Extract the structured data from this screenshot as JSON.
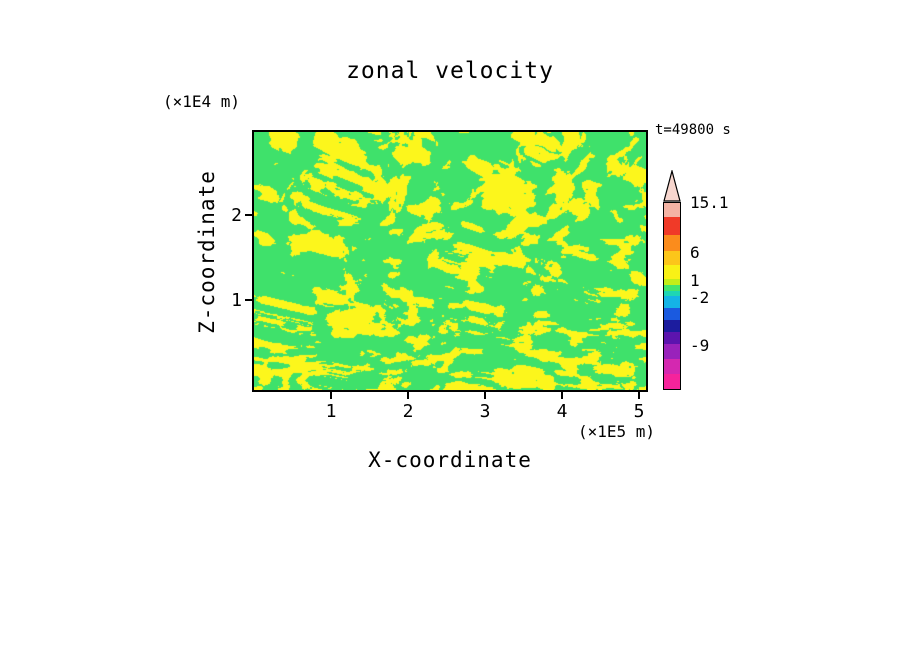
{
  "chart_data": {
    "type": "heatmap",
    "title": "zonal velocity",
    "annotation": "t=49800 s",
    "xlabel": "X-coordinate",
    "ylabel": "Z-coordinate",
    "x_units": "(×1E5 m)",
    "y_units": "(×1E4 m)",
    "x_ticks": [
      1,
      2,
      3,
      4,
      5
    ],
    "y_ticks": [
      1,
      2
    ],
    "xlim": [
      0,
      5.15
    ],
    "ylim": [
      0,
      3.03
    ],
    "legend_position": "right",
    "grid": false,
    "field": {
      "description": "turbulent two-tone filled contour field: green patches are values between -2 and 1, yellow patches are values between 1 and 6",
      "green": "#3fe16b",
      "yellow": "#fcf61c"
    },
    "colorbar": {
      "tip_color": "#f7d6ce",
      "segments": [
        {
          "color": "#f4b3a4",
          "height": 16
        },
        {
          "color": "#f03a28",
          "height": 18
        },
        {
          "color": "#fb8c1c",
          "height": 16
        },
        {
          "color": "#fcc61a",
          "height": 14
        },
        {
          "color": "#f9f116",
          "height": 14
        },
        {
          "color": "#c2ee18",
          "height": 6
        },
        {
          "color": "#42e56c",
          "height": 6
        },
        {
          "color": "#1ed6b4",
          "height": 5
        },
        {
          "color": "#14b4e6",
          "height": 12
        },
        {
          "color": "#1a5ae0",
          "height": 12
        },
        {
          "color": "#1c1c9e",
          "height": 12
        },
        {
          "color": "#5c14ae",
          "height": 12
        },
        {
          "color": "#9922bb",
          "height": 15
        },
        {
          "color": "#d428b0",
          "height": 15
        },
        {
          "color": "#f6239b",
          "height": 15
        }
      ],
      "labels": [
        {
          "text": "15.1",
          "at": 0
        },
        {
          "text": "6",
          "at": 50
        },
        {
          "text": "1",
          "at": 78
        },
        {
          "text": "-2",
          "at": 95
        },
        {
          "text": "-9",
          "at": 143
        }
      ]
    }
  }
}
